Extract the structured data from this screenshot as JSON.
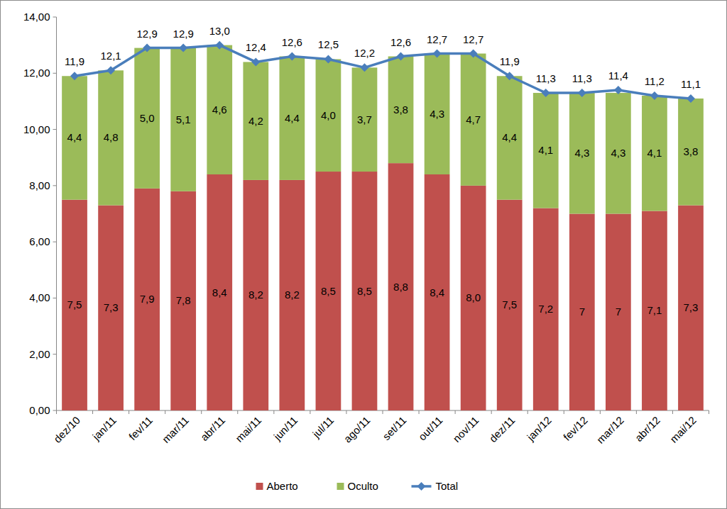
{
  "chart_data": {
    "type": "bar",
    "stacked": true,
    "data_labels": true,
    "grid": false,
    "legend": "bottom",
    "categories": [
      "dez/10",
      "jan/11",
      "fev/11",
      "mar/11",
      "abr/11",
      "mai/11",
      "jun/11",
      "jul/11",
      "ago/11",
      "set/11",
      "out/11",
      "nov/11",
      "dez/11",
      "jan/12",
      "fev/12",
      "mar/12",
      "abr/12",
      "mai/12"
    ],
    "ylim": [
      0,
      14
    ],
    "yticks": [
      {
        "value": 0,
        "label": "0,00"
      },
      {
        "value": 2,
        "label": "2,00"
      },
      {
        "value": 4,
        "label": "4,00"
      },
      {
        "value": 6,
        "label": "6,00"
      },
      {
        "value": 8,
        "label": "8,00"
      },
      {
        "value": 10,
        "label": "10,00"
      },
      {
        "value": 12,
        "label": "12,00"
      },
      {
        "value": 14,
        "label": "14,00"
      }
    ],
    "series": [
      {
        "name": "Aberto",
        "type": "bar",
        "color": "#c0504d",
        "values": [
          7.5,
          7.3,
          7.9,
          7.8,
          8.4,
          8.2,
          8.2,
          8.5,
          8.5,
          8.8,
          8.4,
          8.0,
          7.5,
          7.2,
          7,
          7,
          7.1,
          7.3
        ],
        "value_labels": [
          "7,5",
          "7,3",
          "7,9",
          "7,8",
          "8,4",
          "8,2",
          "8,2",
          "8,5",
          "8,5",
          "8,8",
          "8,4",
          "8,0",
          "7,5",
          "7,2",
          "7",
          "7",
          "7,1",
          "7,3"
        ]
      },
      {
        "name": "Oculto",
        "type": "bar",
        "color": "#9bbb59",
        "values": [
          4.4,
          4.8,
          5.0,
          5.1,
          4.6,
          4.2,
          4.4,
          4.0,
          3.7,
          3.8,
          4.3,
          4.7,
          4.4,
          4.1,
          4.3,
          4.3,
          4.1,
          3.8
        ],
        "value_labels": [
          "4,4",
          "4,8",
          "5,0",
          "5,1",
          "4,6",
          "4,2",
          "4,4",
          "4,0",
          "3,7",
          "3,8",
          "4,3",
          "4,7",
          "4,4",
          "4,1",
          "4,3",
          "4,3",
          "4,1",
          "3,8"
        ]
      },
      {
        "name": "Total",
        "type": "line",
        "color": "#4a7ebb",
        "marker": "diamond",
        "values": [
          11.9,
          12.1,
          12.9,
          12.9,
          13.0,
          12.4,
          12.6,
          12.5,
          12.2,
          12.6,
          12.7,
          12.7,
          11.9,
          11.3,
          11.3,
          11.4,
          11.2,
          11.1
        ],
        "value_labels": [
          "11,9",
          "12,1",
          "12,9",
          "12,9",
          "13,0",
          "12,4",
          "12,6",
          "12,5",
          "12,2",
          "12,6",
          "12,7",
          "12,7",
          "11,9",
          "11,3",
          "11,3",
          "11,4",
          "11,2",
          "11,1"
        ]
      }
    ]
  }
}
